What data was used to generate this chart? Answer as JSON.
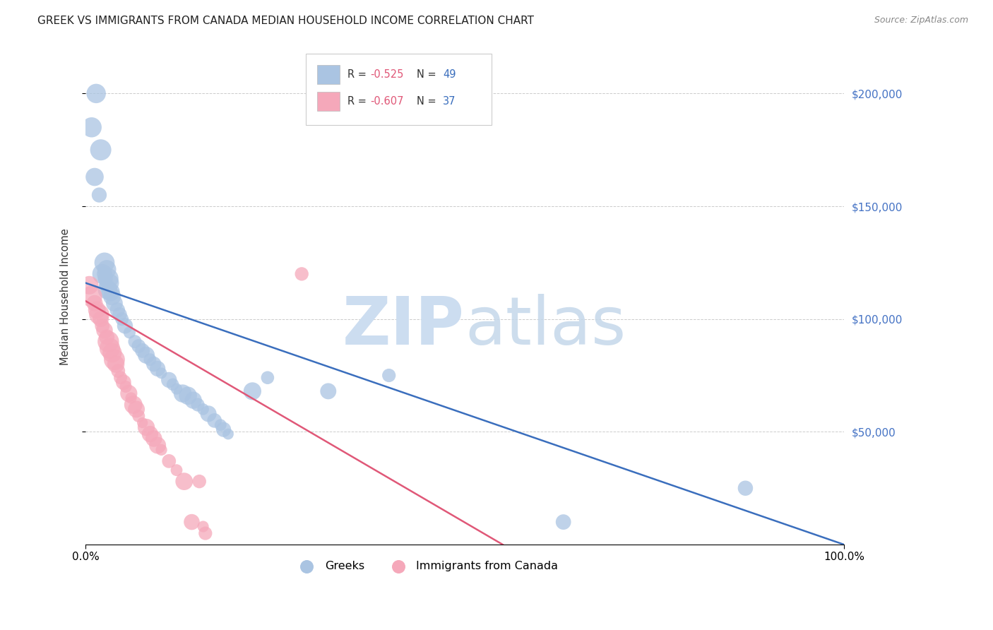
{
  "title": "GREEK VS IMMIGRANTS FROM CANADA MEDIAN HOUSEHOLD INCOME CORRELATION CHART",
  "source": "Source: ZipAtlas.com",
  "ylabel": "Median Household Income",
  "xlim": [
    0,
    1.0
  ],
  "ylim": [
    0,
    220000
  ],
  "ytick_values": [
    50000,
    100000,
    150000,
    200000
  ],
  "blue_color": "#aac4e2",
  "pink_color": "#f5a8ba",
  "line_blue": "#3a6ebd",
  "line_pink": "#e05878",
  "bg_color": "#ffffff",
  "grid_color": "#cccccc",
  "ytick_color": "#4472c4",
  "legend_r_blue": "-0.525",
  "legend_n_blue": "49",
  "legend_r_pink": "-0.607",
  "legend_n_pink": "37",
  "blue_scatter_x": [
    0.008,
    0.014,
    0.02,
    0.012,
    0.018,
    0.022,
    0.025,
    0.028,
    0.03,
    0.032,
    0.033,
    0.035,
    0.024,
    0.026,
    0.027,
    0.029,
    0.038,
    0.042,
    0.045,
    0.048,
    0.052,
    0.058,
    0.065,
    0.07,
    0.075,
    0.08,
    0.085,
    0.09,
    0.095,
    0.1,
    0.11,
    0.115,
    0.12,
    0.128,
    0.135,
    0.142,
    0.148,
    0.155,
    0.162,
    0.17,
    0.178,
    0.182,
    0.188,
    0.22,
    0.24,
    0.32,
    0.4,
    0.87,
    0.63
  ],
  "blue_scatter_y": [
    185000,
    200000,
    175000,
    163000,
    155000,
    120000,
    125000,
    122000,
    118000,
    116000,
    112000,
    110000,
    120000,
    118000,
    115000,
    113000,
    107000,
    104000,
    102000,
    100000,
    97000,
    94000,
    90000,
    88000,
    86000,
    84000,
    82000,
    80000,
    78000,
    76000,
    73000,
    71000,
    69000,
    67000,
    66000,
    64000,
    62000,
    60000,
    58000,
    55000,
    53000,
    51000,
    49000,
    68000,
    74000,
    68000,
    75000,
    25000,
    10000
  ],
  "pink_scatter_x": [
    0.005,
    0.008,
    0.012,
    0.015,
    0.018,
    0.02,
    0.022,
    0.025,
    0.028,
    0.03,
    0.032,
    0.035,
    0.038,
    0.04,
    0.043,
    0.046,
    0.05,
    0.053,
    0.057,
    0.06,
    0.063,
    0.067,
    0.07,
    0.075,
    0.08,
    0.085,
    0.09,
    0.095,
    0.1,
    0.11,
    0.12,
    0.13,
    0.14,
    0.15,
    0.155,
    0.158,
    0.285
  ],
  "pink_scatter_y": [
    115000,
    110000,
    107000,
    104000,
    102000,
    100000,
    97000,
    95000,
    92000,
    90000,
    87000,
    85000,
    82000,
    80000,
    77000,
    74000,
    72000,
    70000,
    67000,
    65000,
    62000,
    60000,
    57000,
    54000,
    52000,
    49000,
    47000,
    44000,
    42000,
    37000,
    33000,
    28000,
    10000,
    28000,
    8000,
    5000,
    120000
  ],
  "blue_line_x": [
    0.0,
    1.0
  ],
  "blue_line_y": [
    116000,
    0
  ],
  "pink_line_x": [
    0.0,
    0.55
  ],
  "pink_line_y": [
    108000,
    0
  ]
}
